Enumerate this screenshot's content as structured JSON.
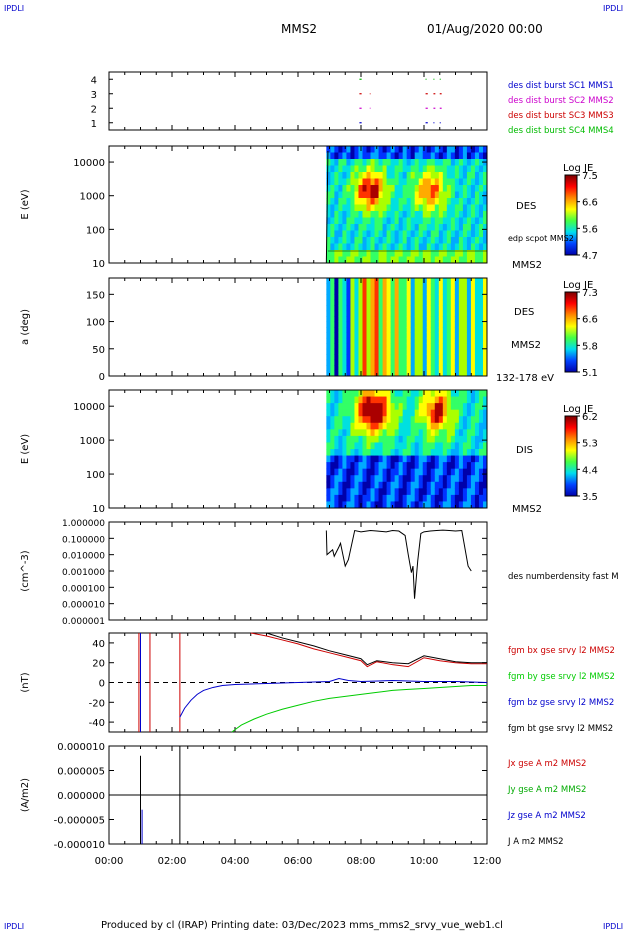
{
  "header": {
    "corner_tl": "IPDLI",
    "corner_tr": "IPDLI",
    "corner_bl": "IPDLI",
    "corner_br": "IPDLI",
    "spacecraft": "MMS2",
    "date": "01/Aug/2020 00:00"
  },
  "footer": {
    "text": "Produced by cl (IRAP)   Printing date: 03/Dec/2023   mms_mms2_srvy_vue_web1.cl"
  },
  "colors": {
    "mms1": "#0000cc",
    "mms2": "#cc00cc",
    "mms3": "#cc0000",
    "mms4": "#00bb00",
    "bx": "#cc0000",
    "by": "#00cc00",
    "bz": "#0000cc",
    "bt": "#000000"
  },
  "chart_data": [
    {
      "type": "line",
      "name": "burst",
      "yticks": [
        "1",
        "2",
        "3",
        "4"
      ],
      "labels": [
        {
          "text": "des dist burst SC1 MMS1",
          "color": "#0000cc"
        },
        {
          "text": "des dist burst SC2 MMS2",
          "color": "#cc00cc"
        },
        {
          "text": "des dist burst SC3 MMS3",
          "color": "#cc0000"
        },
        {
          "text": "des dist burst SC4 MMS4",
          "color": "#00bb00"
        }
      ],
      "intervals": [
        {
          "sc": 4,
          "segments": [
            [
              7.95,
              8.02
            ],
            [
              10.05,
              10.08
            ],
            [
              10.3,
              10.33
            ],
            [
              10.5,
              10.53
            ]
          ]
        },
        {
          "sc": 3,
          "segments": [
            [
              7.95,
              8.02
            ],
            [
              8.28,
              8.3
            ],
            [
              10.05,
              10.12
            ],
            [
              10.3,
              10.36
            ],
            [
              10.5,
              10.56
            ]
          ]
        },
        {
          "sc": 2,
          "segments": [
            [
              7.95,
              8.02
            ],
            [
              8.28,
              8.3
            ],
            [
              10.05,
              10.12
            ],
            [
              10.3,
              10.36
            ],
            [
              10.5,
              10.56
            ]
          ]
        },
        {
          "sc": 1,
          "segments": [
            [
              7.95,
              8.02
            ],
            [
              10.05,
              10.12
            ],
            [
              10.3,
              10.33
            ],
            [
              10.5,
              10.53
            ]
          ]
        }
      ]
    },
    {
      "type": "heatmap",
      "name": "des-energy",
      "ylabel": "E (eV)",
      "yticks": [
        "10000",
        "1000",
        "100",
        "10"
      ],
      "ylim_log": [
        10,
        30000
      ],
      "colorbar": {
        "title": "Log JE",
        "ticks": [
          "7.5",
          "6.6",
          "5.6",
          "4.7"
        ]
      },
      "side_labels": [
        "DES",
        "edp scpot MMS2",
        "MMS2"
      ],
      "data_start_hours": 6.9
    },
    {
      "type": "heatmap",
      "name": "des-pitch",
      "ylabel": "a (deg)",
      "yticks": [
        "150",
        "100",
        "50",
        "0"
      ],
      "ylim": [
        0,
        180
      ],
      "colorbar": {
        "title": "Log JE",
        "ticks": [
          "7.3",
          "6.6",
          "5.8",
          "5.1"
        ]
      },
      "side_labels": [
        "DES",
        "MMS2",
        "132-178 eV"
      ],
      "data_start_hours": 6.9
    },
    {
      "type": "heatmap",
      "name": "dis-energy",
      "ylabel": "E (eV)",
      "yticks": [
        "10000",
        "1000",
        "100",
        "10"
      ],
      "ylim_log": [
        10,
        30000
      ],
      "colorbar": {
        "title": "Log JE",
        "ticks": [
          "6.2",
          "5.3",
          "4.4",
          "3.5"
        ]
      },
      "side_labels": [
        "DIS",
        "MMS2"
      ],
      "data_start_hours": 6.9
    },
    {
      "type": "line",
      "name": "density",
      "ylabel": "(cm^-3)",
      "yticks": [
        "1.000000",
        "0.100000",
        "0.010000",
        "0.001000",
        "0.000100",
        "0.000010",
        "0.000001"
      ],
      "ylim_log": [
        1e-06,
        1.0
      ],
      "series_label": "des numberdensity fast M",
      "x": [
        6.9,
        6.92,
        7.1,
        7.15,
        7.3,
        7.35,
        7.5,
        7.6,
        7.8,
        8.0,
        8.3,
        8.5,
        8.8,
        9.0,
        9.2,
        9.4,
        9.5,
        9.6,
        9.65,
        9.7,
        9.8,
        9.9,
        10.0,
        10.2,
        10.4,
        10.6,
        10.8,
        11.0,
        11.2,
        11.4,
        11.5
      ],
      "y": [
        0.3,
        0.01,
        0.02,
        0.008,
        0.03,
        0.05,
        0.002,
        0.005,
        0.3,
        0.25,
        0.3,
        0.28,
        0.25,
        0.3,
        0.28,
        0.15,
        0.01,
        0.0008,
        0.002,
        2e-05,
        0.004,
        0.2,
        0.25,
        0.28,
        0.3,
        0.32,
        0.3,
        0.28,
        0.3,
        0.002,
        0.001
      ]
    },
    {
      "type": "line",
      "name": "fgm",
      "ylabel": "(nT)",
      "yticks": [
        "40",
        "20",
        "0",
        "-20",
        "-40"
      ],
      "ylim": [
        -50,
        50
      ],
      "series": [
        {
          "name": "fgm bx gse srvy l2 MMS2",
          "color": "#cc0000",
          "x": [
            4.5,
            5.0,
            5.5,
            6.0,
            6.5,
            7.0,
            7.5,
            8.0,
            8.2,
            8.5,
            9.0,
            9.5,
            10.0,
            10.5,
            11.0,
            11.5,
            12.0
          ],
          "y": [
            50,
            47,
            43,
            39,
            34,
            30,
            26,
            22,
            16,
            21,
            18,
            16,
            25,
            22,
            20,
            19,
            19
          ]
        },
        {
          "name": "fgm by gse srvy l2 MMS2",
          "color": "#00cc00",
          "x": [
            3.9,
            4.2,
            4.6,
            5.0,
            5.5,
            6.0,
            6.5,
            7.0,
            7.5,
            8.0,
            8.5,
            9.0,
            9.5,
            10.0,
            10.5,
            11.0,
            11.5,
            12.0
          ],
          "y": [
            -50,
            -43,
            -37,
            -32,
            -27,
            -23,
            -19,
            -16,
            -14,
            -12,
            -10,
            -8,
            -7,
            -6,
            -5,
            -4,
            -3,
            -3
          ]
        },
        {
          "name": "fgm bz gse srvy l2 MMS2",
          "color": "#0000cc",
          "x": [
            2.25,
            2.4,
            2.6,
            2.8,
            3.0,
            3.3,
            3.6,
            4.0,
            5.0,
            6.0,
            7.0,
            7.3,
            7.6,
            8.0,
            9.0,
            10.0,
            11.0,
            12.0
          ],
          "y": [
            -35,
            -26,
            -18,
            -12,
            -8,
            -5,
            -3,
            -2,
            -1,
            0,
            1,
            4,
            2,
            1,
            2,
            1,
            1,
            0
          ]
        },
        {
          "name": "fgm bt gse srvy l2 MMS2",
          "color": "#000000",
          "x": [
            5.0,
            5.5,
            6.0,
            6.5,
            7.0,
            7.5,
            8.0,
            8.2,
            8.5,
            9.0,
            9.5,
            10.0,
            10.5,
            11.0,
            11.5,
            12.0
          ],
          "y": [
            50,
            45,
            41,
            37,
            32,
            28,
            24,
            18,
            22,
            20,
            19,
            27,
            24,
            21,
            20,
            20
          ]
        }
      ]
    },
    {
      "type": "line",
      "name": "current",
      "ylabel": "(A/m2)",
      "yticks": [
        "0.000010",
        "0.000005",
        "0.000000",
        "-0.000005",
        "-0.000010"
      ],
      "ylim": [
        -1e-05,
        1e-05
      ],
      "xticks": [
        "00:00",
        "02:00",
        "04:00",
        "06:00",
        "08:00",
        "10:00",
        "12:00"
      ],
      "xlim_hours": [
        0,
        12
      ],
      "series": [
        {
          "name": "Jx gse A m2 MMS2",
          "color": "#cc0000"
        },
        {
          "name": "Jy gse A m2 MMS2",
          "color": "#00aa00"
        },
        {
          "name": "Jz gse A m2 MMS2",
          "color": "#0000cc"
        },
        {
          "name": "J A m2 MMS2",
          "color": "#000000"
        }
      ]
    }
  ]
}
